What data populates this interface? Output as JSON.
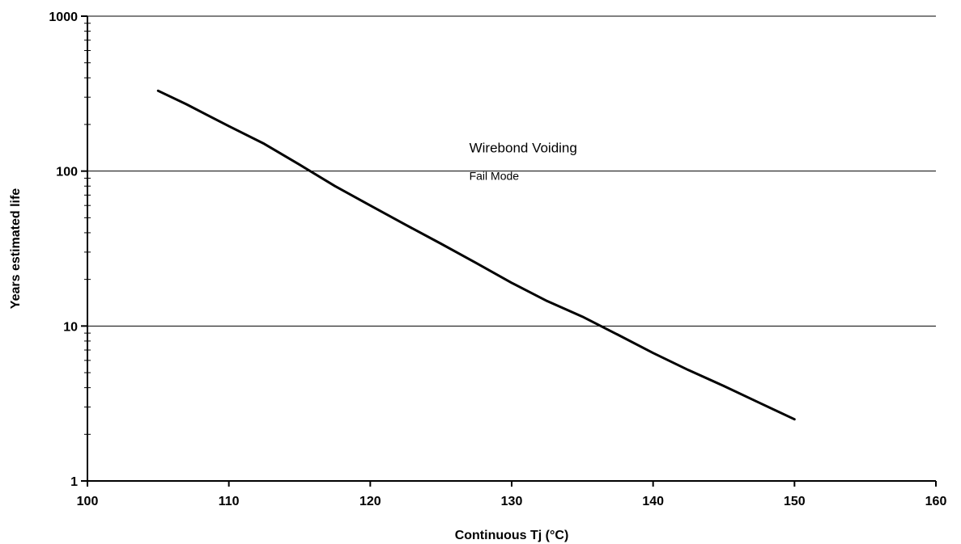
{
  "chart_data": {
    "type": "line",
    "title": "",
    "xlabel": "Continuous Tj (°C)",
    "ylabel": "Years estimated life",
    "xlim": [
      100,
      160
    ],
    "ylim": [
      1,
      1000
    ],
    "yscale": "log",
    "x_ticks": [
      100,
      110,
      120,
      130,
      140,
      150,
      160
    ],
    "x_tick_labels": [
      "100",
      "110",
      "120",
      "130",
      "140",
      "150",
      "160"
    ],
    "y_ticks": [
      1,
      10,
      100,
      1000
    ],
    "y_tick_labels": [
      "1",
      "10",
      "100",
      "1000"
    ],
    "grid": "horizontal major",
    "legend": "none",
    "series": [
      {
        "x": [
          105,
          107,
          110,
          112.5,
          115,
          117.5,
          120,
          122.5,
          125,
          127.5,
          130,
          132.5,
          135,
          137.5,
          140,
          142.5,
          145,
          147.5,
          150
        ],
        "y": [
          330,
          270,
          195,
          150,
          110,
          80,
          60,
          45,
          34,
          25.5,
          19,
          14.5,
          11.5,
          8.8,
          6.7,
          5.2,
          4.1,
          3.2,
          2.5
        ],
        "color": "#000000"
      }
    ],
    "annotations": [
      {
        "text": "Wirebond Voiding",
        "x": 127,
        "y": 132
      },
      {
        "text": "Fail Mode",
        "x": 127,
        "y": 88
      }
    ]
  }
}
